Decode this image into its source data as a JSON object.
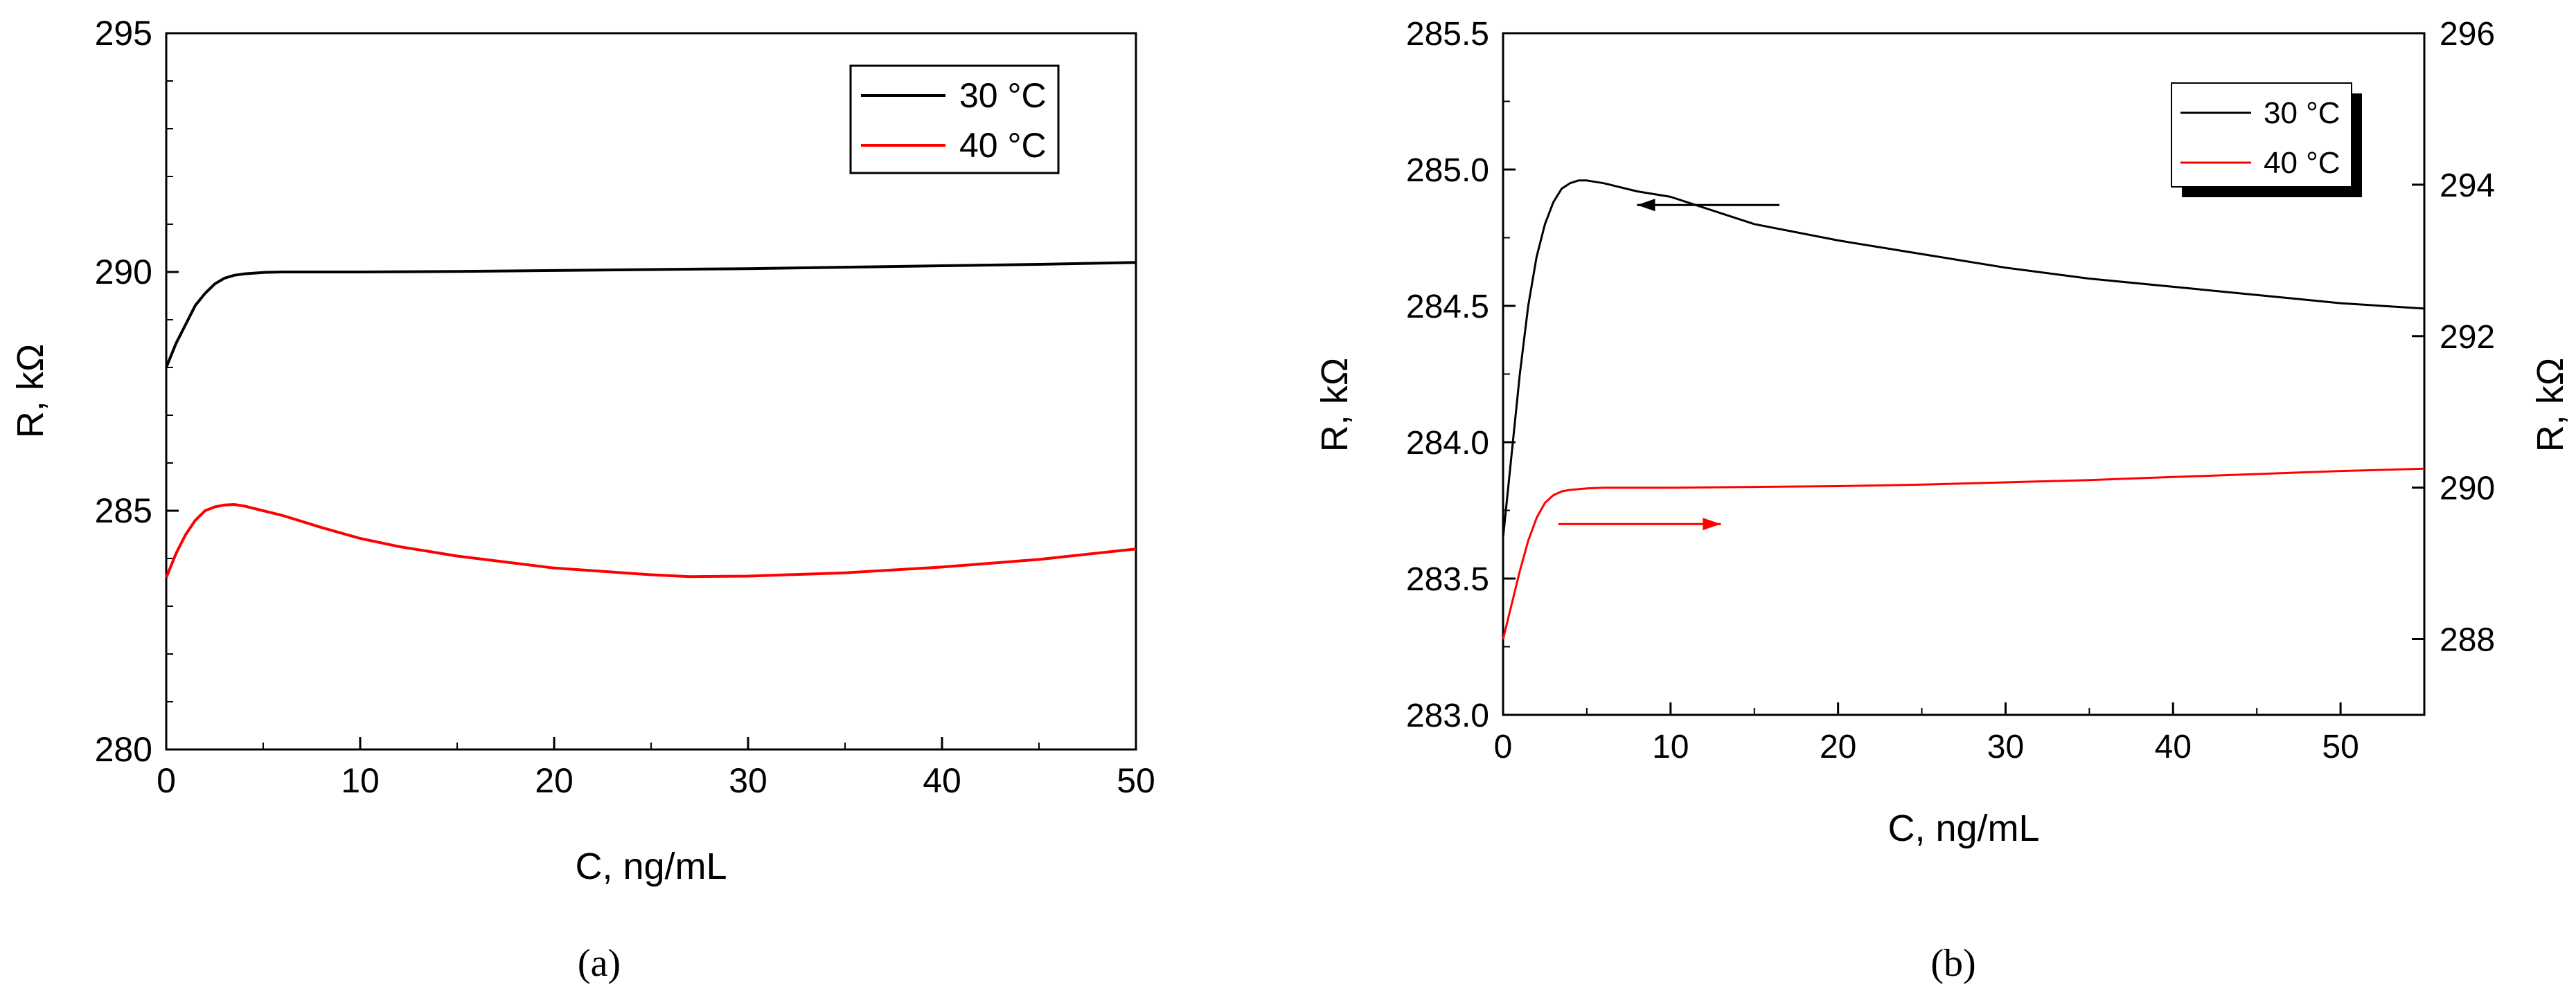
{
  "chart_data": [
    {
      "type": "line",
      "panel_caption": "(a)",
      "xlabel": "C, ng/mL",
      "ylabel": "R, kΩ",
      "xlim": [
        0,
        50
      ],
      "ylim": [
        280,
        295
      ],
      "xticks": [
        "0",
        "10",
        "20",
        "30",
        "40",
        "50"
      ],
      "yticks": [
        "280",
        "285",
        "290",
        "295"
      ],
      "grid": false,
      "legend_position": "top-right",
      "series": [
        {
          "name": "30 °C",
          "color": "#000000",
          "x": [
            0,
            0.5,
            1,
            1.5,
            2,
            2.5,
            3,
            3.5,
            4,
            5,
            6,
            8,
            10,
            15,
            20,
            25,
            30,
            35,
            40,
            45,
            50
          ],
          "y": [
            288.0,
            288.5,
            288.9,
            289.3,
            289.55,
            289.75,
            289.87,
            289.93,
            289.96,
            289.99,
            290.0,
            290.0,
            290.0,
            290.01,
            290.03,
            290.05,
            290.07,
            290.1,
            290.13,
            290.16,
            290.2
          ]
        },
        {
          "name": "40 °C",
          "color": "#ff0000",
          "x": [
            0,
            0.5,
            1,
            1.5,
            2,
            2.5,
            3,
            3.5,
            4,
            5,
            6,
            8,
            10,
            12,
            15,
            20,
            25,
            27,
            30,
            35,
            40,
            45,
            50
          ],
          "y": [
            283.6,
            284.1,
            284.5,
            284.8,
            285.0,
            285.08,
            285.12,
            285.13,
            285.1,
            285.0,
            284.9,
            284.65,
            284.42,
            284.25,
            284.05,
            283.8,
            283.66,
            283.62,
            283.63,
            283.7,
            283.82,
            283.98,
            284.2
          ]
        }
      ]
    },
    {
      "type": "line",
      "panel_caption": "(b)",
      "xlabel": "C, ng/mL",
      "ylabel": "R, kΩ",
      "y2label": "R, kΩ",
      "xlim": [
        0,
        55
      ],
      "ylim": [
        283.0,
        285.5
      ],
      "y2lim": [
        287,
        296
      ],
      "xticks": [
        "0",
        "10",
        "20",
        "30",
        "40",
        "50"
      ],
      "yticks": [
        "283.0",
        "283.5",
        "284.0",
        "284.5",
        "285.0",
        "285.5"
      ],
      "y2ticks": [
        "288",
        "290",
        "292",
        "294",
        "296"
      ],
      "grid": false,
      "legend_position": "top-right",
      "series": [
        {
          "name": "30 °C",
          "color": "#000000",
          "axis": "left",
          "x": [
            0,
            0.5,
            1,
            1.5,
            2,
            2.5,
            3,
            3.5,
            4,
            4.5,
            5,
            6,
            8,
            10,
            15,
            20,
            25,
            30,
            35,
            40,
            45,
            50,
            55
          ],
          "y": [
            283.65,
            283.95,
            284.25,
            284.5,
            284.68,
            284.8,
            284.88,
            284.93,
            284.95,
            284.96,
            284.96,
            284.95,
            284.92,
            284.9,
            284.8,
            284.74,
            284.69,
            284.64,
            284.6,
            284.57,
            284.54,
            284.51,
            284.49
          ]
        },
        {
          "name": "40 °C",
          "color": "#ff0000",
          "axis": "right",
          "x": [
            0,
            0.5,
            1,
            1.5,
            2,
            2.5,
            3,
            3.5,
            4,
            5,
            6,
            8,
            10,
            15,
            20,
            25,
            30,
            35,
            40,
            45,
            50,
            55
          ],
          "y": [
            288.0,
            288.45,
            288.9,
            289.3,
            289.6,
            289.8,
            289.9,
            289.95,
            289.97,
            289.99,
            290.0,
            290.0,
            290.0,
            290.01,
            290.02,
            290.04,
            290.07,
            290.1,
            290.14,
            290.18,
            290.22,
            290.25
          ]
        }
      ],
      "arrows": [
        {
          "direction": "left",
          "color": "#000000",
          "from": [
            16.5,
            284.87
          ],
          "to": [
            8,
            284.87
          ]
        },
        {
          "direction": "right",
          "color": "#ff0000",
          "from": [
            3.3,
            283.7
          ],
          "to": [
            13,
            283.7
          ]
        }
      ]
    }
  ]
}
